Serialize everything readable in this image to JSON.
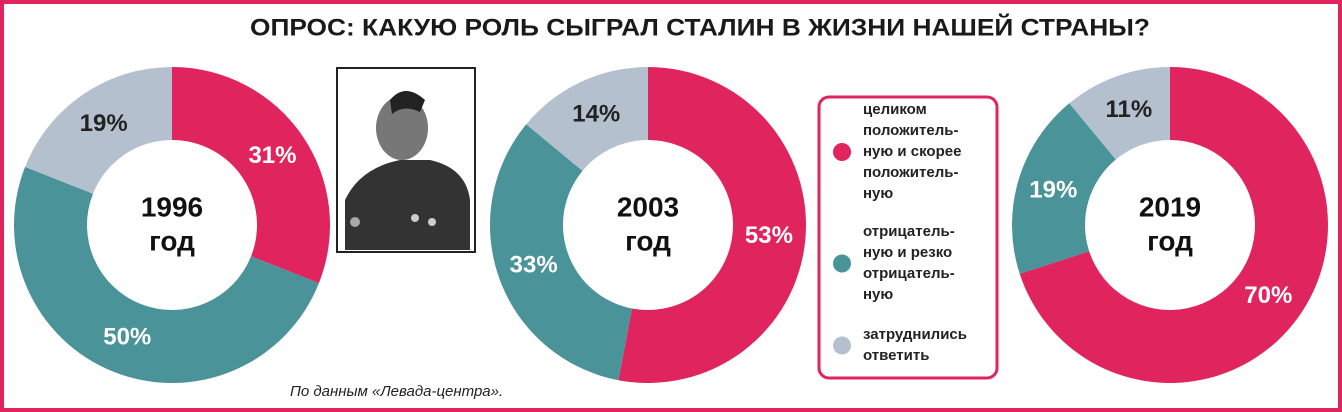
{
  "title": "ОПРОС: КАКУЮ РОЛЬ СЫГРАЛ СТАЛИН В ЖИЗНИ НАШЕЙ СТРАНЫ?",
  "source": "По данным «Левада-центра».",
  "legend": {
    "items": [
      {
        "lines": [
          "целиком",
          "положитель-",
          "ную и скорее",
          "положитель-",
          "ную"
        ],
        "color": "#e0245e"
      },
      {
        "lines": [
          "отрицатель-",
          "ную и резко",
          "отрицатель-",
          "ную"
        ],
        "color": "#4a9399"
      },
      {
        "lines": [
          "затруднились",
          "ответить"
        ],
        "color": "#b5c0cf"
      }
    ]
  },
  "chart_data": [
    {
      "type": "donut",
      "year": "1996",
      "unit": "год",
      "values": [
        31,
        50,
        19
      ],
      "value_labels": [
        "31%",
        "50%",
        "19%"
      ],
      "colors": [
        "#e0245e",
        "#4a9399",
        "#b5c0cf"
      ],
      "label_colors": [
        "#ffffff",
        "#ffffff",
        "#222222"
      ]
    },
    {
      "type": "donut",
      "year": "2003",
      "unit": "год",
      "values": [
        53,
        33,
        14
      ],
      "value_labels": [
        "53%",
        "33%",
        "14%"
      ],
      "colors": [
        "#e0245e",
        "#4a9399",
        "#b5c0cf"
      ],
      "label_colors": [
        "#ffffff",
        "#ffffff",
        "#222222"
      ]
    },
    {
      "type": "donut",
      "year": "2019",
      "unit": "год",
      "values": [
        70,
        19,
        11
      ],
      "value_labels": [
        "70%",
        "19%",
        "11%"
      ],
      "colors": [
        "#e0245e",
        "#4a9399",
        "#b5c0cf"
      ],
      "label_colors": [
        "#ffffff",
        "#ffffff",
        "#222222"
      ]
    }
  ]
}
